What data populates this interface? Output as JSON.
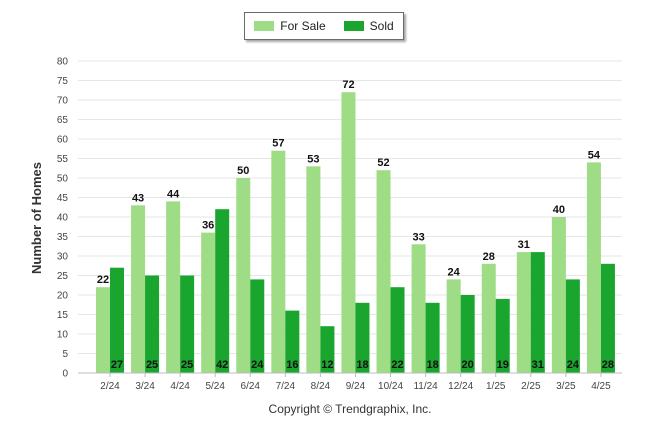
{
  "chart_data": {
    "type": "bar",
    "categories": [
      "2/24",
      "3/24",
      "4/24",
      "5/24",
      "6/24",
      "7/24",
      "8/24",
      "9/24",
      "10/24",
      "11/24",
      "12/24",
      "1/25",
      "2/25",
      "3/25",
      "4/25"
    ],
    "series": [
      {
        "name": "For Sale",
        "color": "#9edc86",
        "values": [
          22,
          43,
          44,
          36,
          50,
          57,
          53,
          72,
          52,
          33,
          24,
          28,
          31,
          40,
          54
        ]
      },
      {
        "name": "Sold",
        "color": "#1aa52e",
        "values": [
          27,
          25,
          25,
          42,
          24,
          16,
          12,
          18,
          22,
          18,
          20,
          19,
          31,
          24,
          28
        ]
      }
    ],
    "ylabel": "Number of Homes",
    "xlabel": "",
    "ylim": [
      0,
      80
    ],
    "ytick_step": 5,
    "grid": true,
    "legend_position": "top-center"
  },
  "footer": {
    "copyright": "Copyright © Trendgraphix, Inc."
  }
}
